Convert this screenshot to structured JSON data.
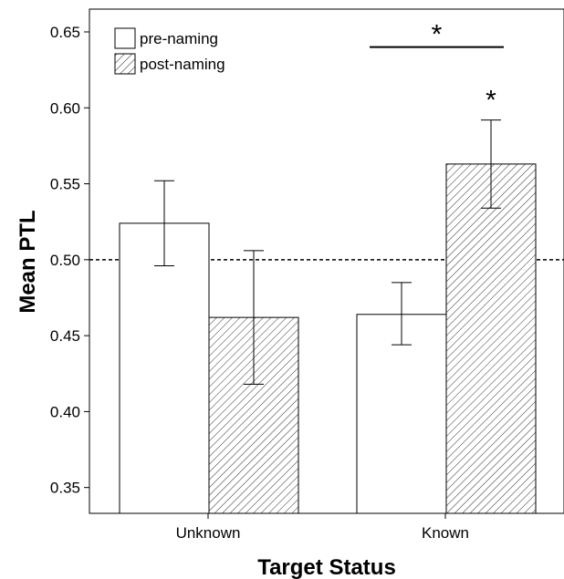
{
  "chart_data": {
    "type": "bar",
    "title": "",
    "xlabel": "Target Status",
    "ylabel": "Mean PTL",
    "categories": [
      "Unknown",
      "Known"
    ],
    "ylim": [
      0.333,
      0.665
    ],
    "yticks": [
      0.35,
      0.4,
      0.45,
      0.5,
      0.55,
      0.6,
      0.65
    ],
    "ytick_labels": [
      "0.35",
      "0.40",
      "0.45",
      "0.50",
      "0.55",
      "0.60",
      "0.65"
    ],
    "reference_line": 0.5,
    "legend_position": "top-left",
    "grid": false,
    "series": [
      {
        "name": "pre-naming",
        "style": "white",
        "values": [
          0.524,
          0.464
        ],
        "error_upper": [
          0.552,
          0.485
        ],
        "error_lower": [
          0.496,
          0.444
        ]
      },
      {
        "name": "post-naming",
        "style": "hatched",
        "values": [
          0.462,
          0.563
        ],
        "error_upper": [
          0.506,
          0.592
        ],
        "error_lower": [
          0.418,
          0.534
        ]
      }
    ],
    "annotations": [
      {
        "text": "*",
        "type": "bracket",
        "category": "Known"
      },
      {
        "text": "*",
        "type": "bar-star",
        "category": "Known",
        "series": "post-naming"
      }
    ]
  }
}
